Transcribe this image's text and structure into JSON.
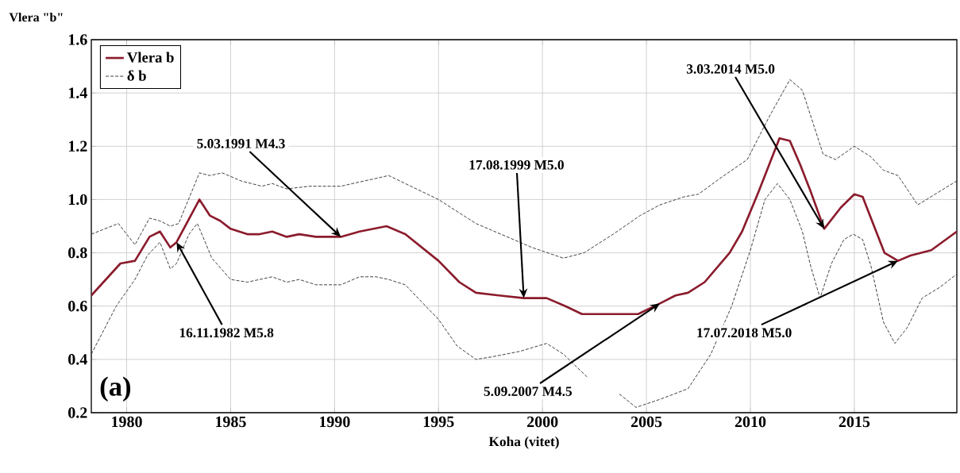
{
  "chart_data": {
    "type": "line",
    "xlabel": "Koha (vitet)",
    "ylabel": "Vlera \"b\"",
    "xlim": [
      1978.3,
      2019.93
    ],
    "ylim": [
      0.2,
      1.6
    ],
    "xticks": [
      1980,
      1985,
      1990,
      1995,
      2000,
      2005,
      2010,
      2015
    ],
    "yticks": [
      0.2,
      0.4,
      0.6,
      0.8,
      {
        "value": 1,
        "label": "1.0"
      },
      1.2,
      1.4,
      1.6
    ],
    "grid": true,
    "legend": "top left",
    "series": [
      {
        "name": "Vlera b",
        "color": "#8b1c2c",
        "line_style": "solid",
        "x": [
          1978.3,
          1979.7,
          1980.4,
          1981.1,
          1981.6,
          1982.1,
          1982.4,
          1983.5,
          1984.0,
          1984.5,
          1985.0,
          1985.8,
          1986.4,
          1987.0,
          1987.7,
          1988.3,
          1989.1,
          1990.3,
          1991.2,
          1992.5,
          1993.4,
          1995.0,
          1996.0,
          1996.8,
          1997.9,
          1999.1,
          2000.2,
          2001.1,
          2001.9,
          2003.1,
          2004.6,
          2005.65,
          2006.4,
          2007.0,
          2007.8,
          2009.0,
          2009.6,
          2010.4,
          2011.4,
          2011.9,
          2012.4,
          2012.9,
          2013.55,
          2014.35,
          2015.0,
          2015.4,
          2015.8,
          2016.45,
          2017.1,
          2017.7,
          2018.7,
          2019.93
        ],
        "values": [
          0.64,
          0.76,
          0.77,
          0.86,
          0.88,
          0.82,
          0.84,
          1.0,
          0.94,
          0.92,
          0.89,
          0.87,
          0.87,
          0.88,
          0.86,
          0.87,
          0.86,
          0.86,
          0.88,
          0.9,
          0.87,
          0.77,
          0.69,
          0.65,
          0.64,
          0.63,
          0.63,
          0.6,
          0.57,
          0.57,
          0.57,
          0.61,
          0.64,
          0.65,
          0.69,
          0.8,
          0.88,
          1.03,
          1.23,
          1.22,
          1.13,
          1.03,
          0.89,
          0.97,
          1.02,
          1.01,
          0.93,
          0.8,
          0.77,
          0.79,
          0.81,
          0.88
        ]
      },
      {
        "name": "δ b",
        "color": "#333333",
        "line_style": "dashed",
        "x": [
          1978.3,
          1979.6,
          1980.4,
          1981.1,
          1981.6,
          1982.1,
          1982.5,
          1983.5,
          1984.0,
          1984.6,
          1985.5,
          1986.5,
          1987.0,
          1987.7,
          1988.8,
          1990.3,
          1992.6,
          1995.0,
          1996.8,
          1997.7,
          1999.5,
          2001.0,
          2002.0,
          2003.4,
          2004.7,
          2005.65,
          2006.8,
          2007.5,
          2008.55,
          2009.85,
          2010.9,
          2011.9,
          2012.5,
          2013.5,
          2014.1,
          2015.0,
          2015.8,
          2016.4,
          2017.1,
          2018.05,
          2019.93
        ],
        "values": [
          0.87,
          0.91,
          0.83,
          0.93,
          0.92,
          0.9,
          0.91,
          1.1,
          1.09,
          1.1,
          1.07,
          1.05,
          1.06,
          1.04,
          1.05,
          1.05,
          1.09,
          1.0,
          0.91,
          0.88,
          0.82,
          0.78,
          0.8,
          0.87,
          0.94,
          0.98,
          1.01,
          1.02,
          1.08,
          1.15,
          1.31,
          1.45,
          1.41,
          1.17,
          1.15,
          1.2,
          1.16,
          1.11,
          1.09,
          0.98,
          1.07
        ]
      },
      {
        "color": "#333333",
        "line_style": "dashed",
        "x": [
          1978.3,
          1979.5,
          1980.4,
          1981.0,
          1981.6,
          1982.1,
          1982.4,
          1983.0,
          1983.4,
          1984.1,
          1985.0,
          1985.8,
          1987.0,
          1987.7,
          1988.3,
          1989.1,
          1990.3,
          1991.2,
          1992.0,
          1992.6,
          1993.4,
          1995.0,
          1995.9,
          1996.8,
          1997.6,
          1998.9,
          2000.2,
          2001.0,
          2002.2,
          2003.0,
          2003.7,
          2004.5,
          2005.65,
          2007.0,
          2008.1,
          2009.1,
          2010.0,
          2010.7,
          2011.3,
          2011.9,
          2012.5,
          2012.9,
          2013.35,
          2013.9,
          2014.5,
          2014.95,
          2015.4,
          2015.8,
          2016.4,
          2016.95,
          2017.55,
          2018.26,
          2019.1,
          2019.93
        ],
        "values": [
          0.42,
          0.6,
          0.7,
          0.79,
          0.84,
          0.74,
          0.76,
          0.87,
          0.91,
          0.78,
          0.7,
          0.69,
          0.71,
          0.69,
          0.7,
          0.68,
          0.68,
          0.71,
          0.71,
          0.7,
          0.68,
          0.55,
          0.45,
          0.4,
          0.41,
          0.43,
          0.46,
          0.42,
          0.33,
          null,
          0.27,
          0.22,
          0.25,
          0.29,
          0.42,
          0.6,
          0.81,
          1.0,
          1.06,
          1.0,
          0.88,
          0.75,
          0.63,
          0.76,
          0.85,
          0.87,
          0.85,
          0.75,
          0.54,
          0.46,
          0.52,
          0.63,
          0.67,
          0.72
        ]
      }
    ],
    "annotations": [
      {
        "text": "5.03.1991 M4.3",
        "x": 1990.3,
        "y": 0.86
      },
      {
        "text": "16.11.1982 M5.8",
        "x": 1982.4,
        "y": 0.84
      },
      {
        "text": "17.08.1999 M5.0",
        "x": 1999.1,
        "y": 0.63
      },
      {
        "text": "5.09.2007 M4.5",
        "x": 2005.65,
        "y": 0.61
      },
      {
        "text": "3.03.2014 M5.0",
        "x": 2013.55,
        "y": 0.89
      },
      {
        "text": "17.07.2018 M5.0",
        "x": 2017.1,
        "y": 0.77
      },
      "(a)"
    ]
  }
}
